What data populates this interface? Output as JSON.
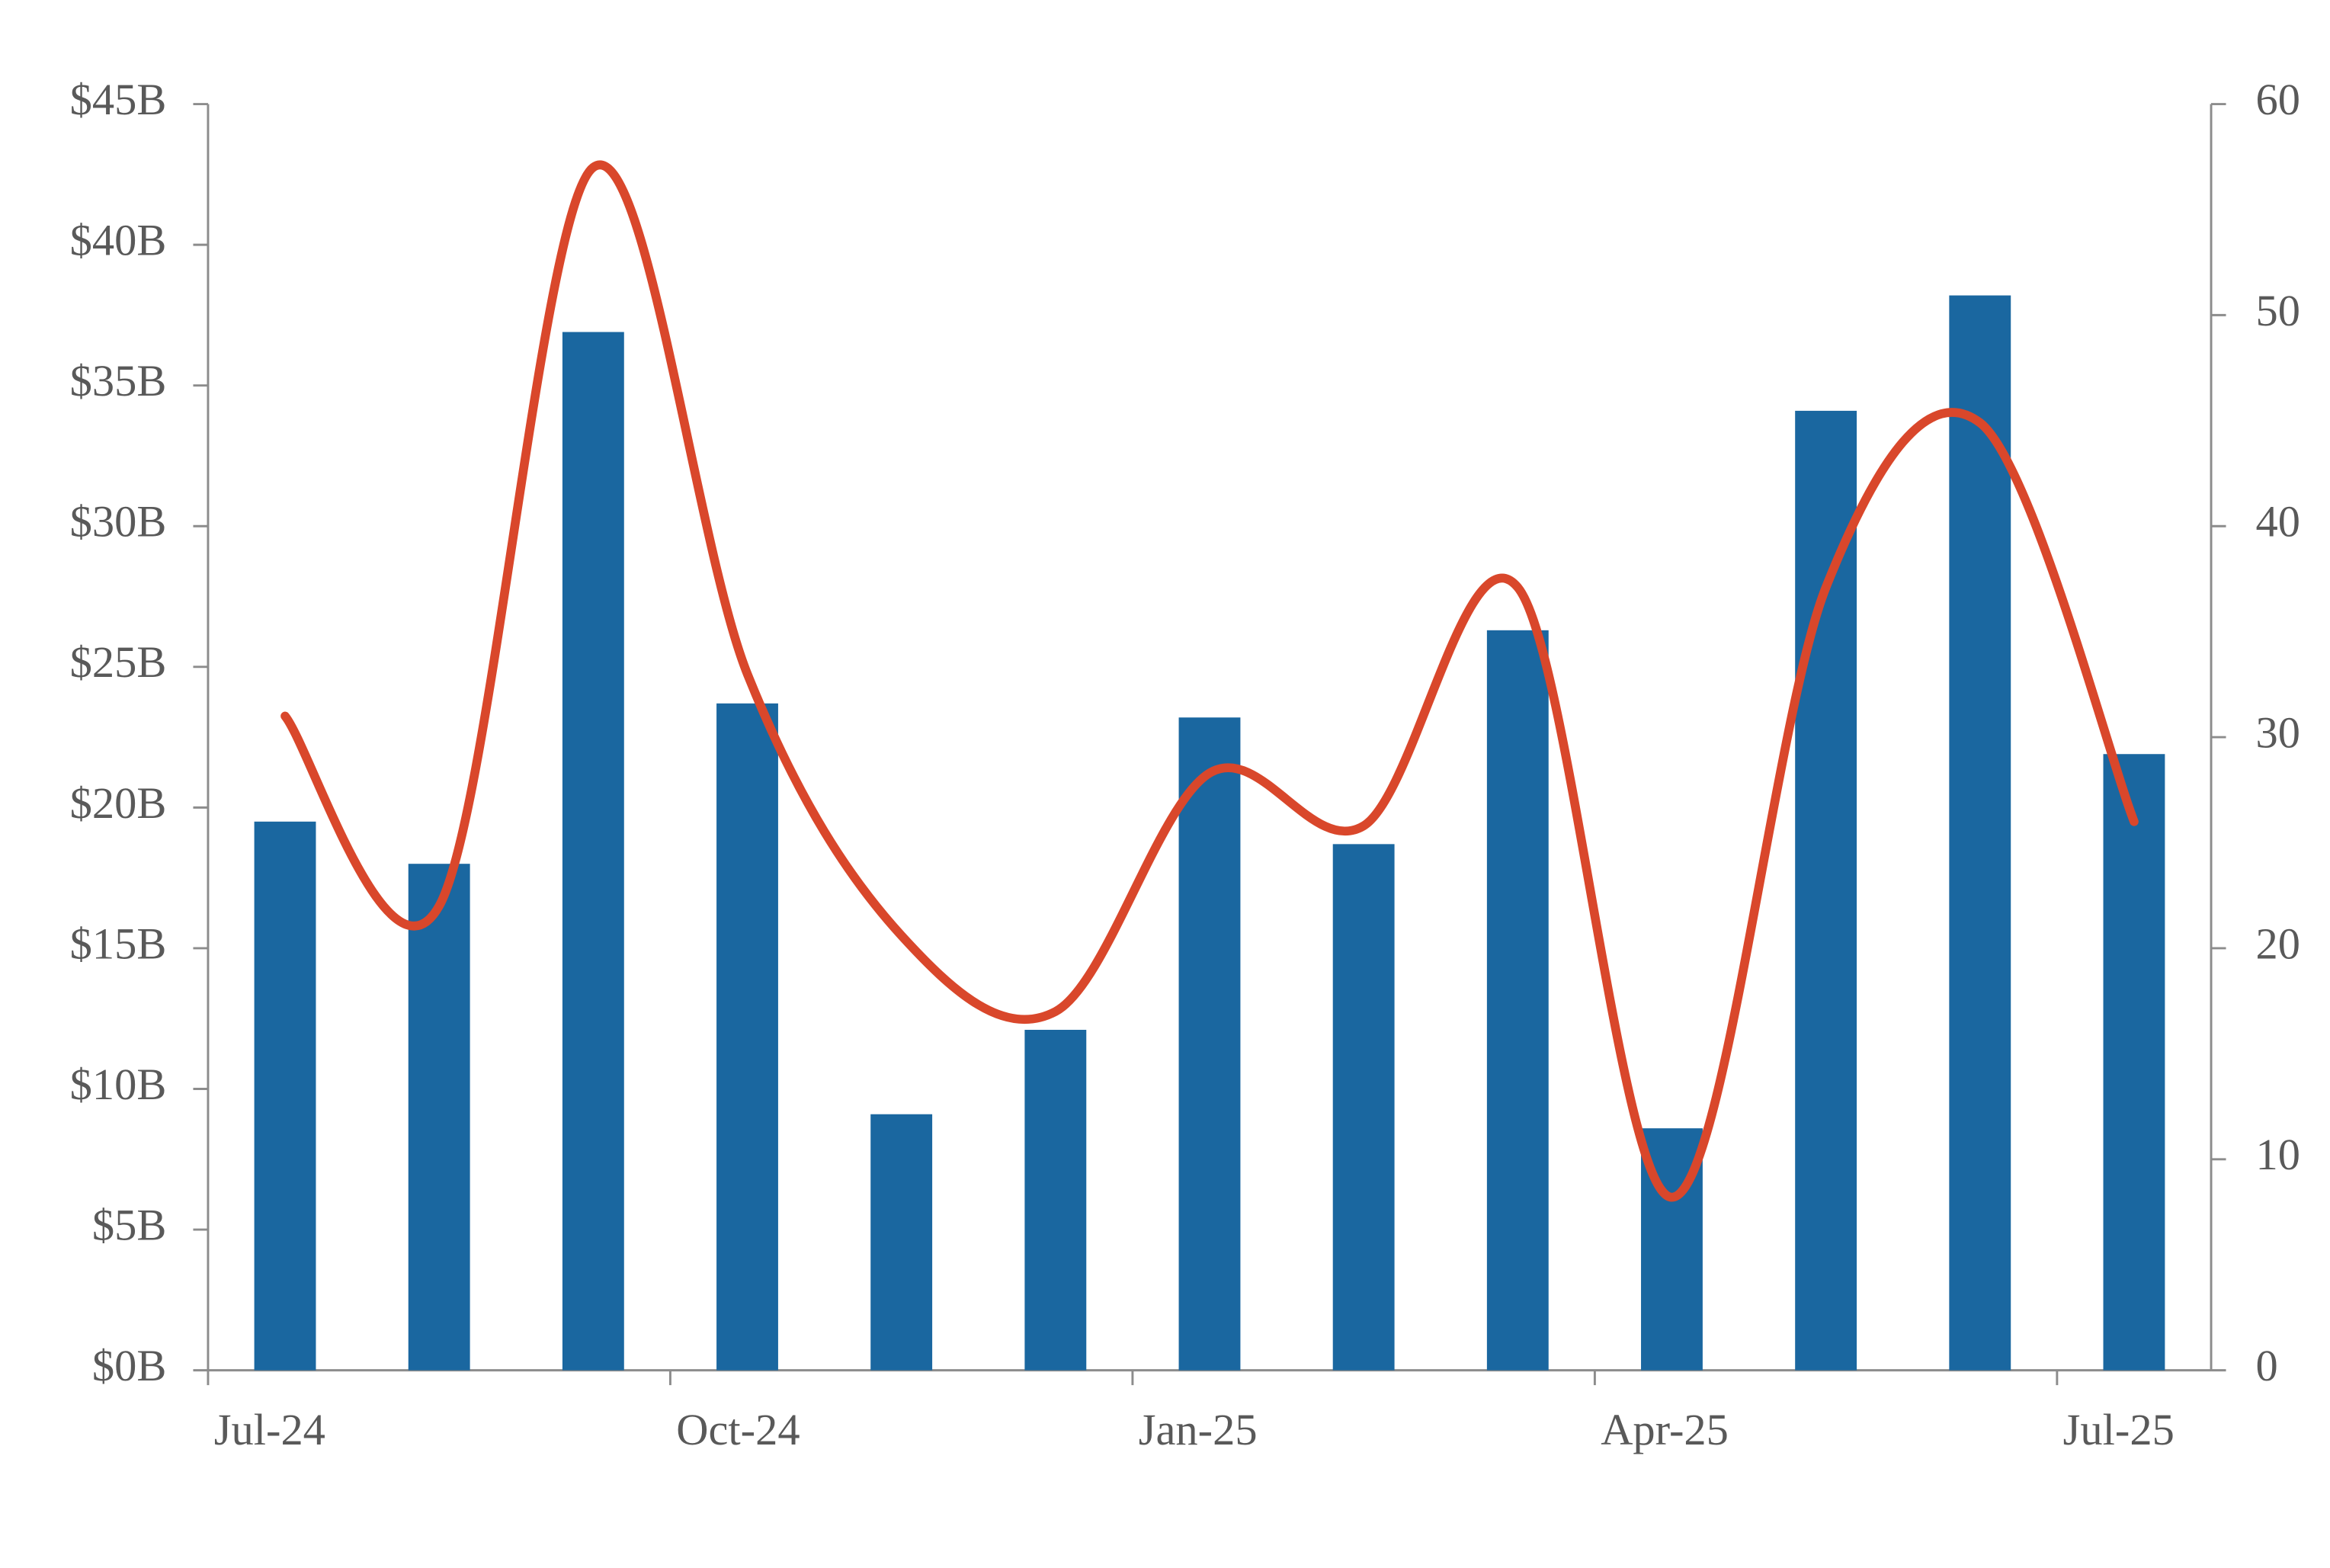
{
  "chart_data": {
    "type": "bar-line",
    "categories": [
      "Jul-24",
      null,
      null,
      "Oct-24",
      null,
      null,
      "Jan-25",
      null,
      null,
      "Apr-25",
      null,
      null,
      "Jul-25"
    ],
    "series": [
      {
        "type": "bar",
        "color": "#1a67a0",
        "values": [
          19.5,
          18.0,
          36.9,
          23.7,
          9.1,
          12.1,
          23.2,
          18.7,
          26.3,
          8.6,
          34.1,
          38.2,
          21.9
        ]
      },
      {
        "type": "line",
        "axis": "y2",
        "smooth": true,
        "color": "#d9472b",
        "values": [
          31,
          22,
          57,
          33,
          20.6,
          17,
          28.3,
          25.8,
          37.1,
          8.2,
          37.1,
          44.9,
          26
        ]
      }
    ],
    "ylim": [
      0,
      45
    ],
    "yticks": [
      {
        "value": 0,
        "label": "$0B"
      },
      {
        "value": 5,
        "label": "$5B"
      },
      {
        "value": 10,
        "label": "$10B"
      },
      {
        "value": 15,
        "label": "$15B"
      },
      {
        "value": 20,
        "label": "$20B"
      },
      {
        "value": 25,
        "label": "$25B"
      },
      {
        "value": 30,
        "label": "$30B"
      },
      {
        "value": 35,
        "label": "$35B"
      },
      {
        "value": 40,
        "label": "$40B"
      },
      {
        "value": 45,
        "label": "$45B"
      }
    ],
    "y2lim": [
      0,
      60
    ],
    "y2ticks": [
      0,
      10,
      20,
      30,
      40,
      50,
      60
    ]
  }
}
